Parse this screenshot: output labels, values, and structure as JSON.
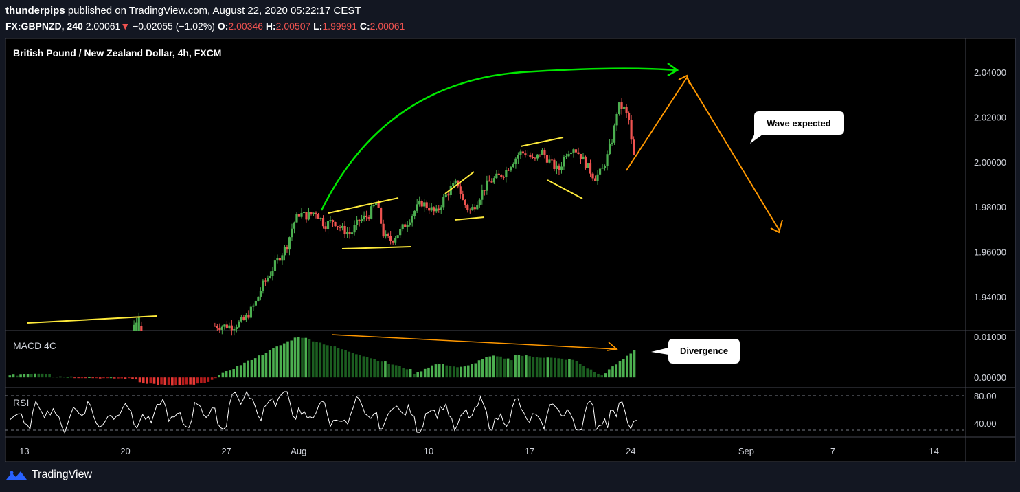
{
  "header": {
    "author": "thunderpips",
    "published_text": "published on TradingView.com, August 22, 2020 05:22:17 CEST",
    "symbol": "FX:GBPNZD, 240",
    "last": "2.00061",
    "change": "−0.02055 (−1.02%)",
    "o_label": "O:",
    "o": "2.00346",
    "h_label": "H:",
    "h": "2.00507",
    "l_label": "L:",
    "l": "1.99991",
    "c_label": "C:",
    "c": "2.00061"
  },
  "footer": {
    "brand": "TradingView"
  },
  "colors": {
    "up": "#26a69a",
    "up_candle": "#4caf50",
    "down": "#ef5350",
    "green_arrow": "#00e600",
    "orange": "#ff9800",
    "yellow": "#ffeb3b",
    "bg": "#000000",
    "page": "#131722"
  },
  "chart_data": {
    "type": "candlestick",
    "title": "British Pound / New Zealand Dollar, 4h, FXCM",
    "price_ylim": [
      1.925,
      2.055
    ],
    "price_ticks": [
      "2.04000",
      "2.02000",
      "2.00000",
      "1.98000",
      "1.96000",
      "1.94000"
    ],
    "x_ticks": [
      {
        "label": "13",
        "day": 13
      },
      {
        "label": "20",
        "day": 20
      },
      {
        "label": "27",
        "day": 27
      },
      {
        "label": "Aug",
        "day": 32
      },
      {
        "label": "10",
        "day": 41
      },
      {
        "label": "17",
        "day": 48
      },
      {
        "label": "24",
        "day": 55
      },
      {
        "label": "Sep",
        "day": 63
      },
      {
        "label": "7",
        "day": 69
      },
      {
        "label": "14",
        "day": 76
      }
    ],
    "x_range_days": [
      11.7,
      78.2
    ],
    "price_path": [
      [
        26.2,
        1.927
      ],
      [
        27.5,
        1.927
      ],
      [
        28.3,
        1.93
      ],
      [
        29.0,
        1.937
      ],
      [
        29.5,
        1.945
      ],
      [
        30.0,
        1.95
      ],
      [
        30.6,
        1.957
      ],
      [
        31.2,
        1.963
      ],
      [
        31.6,
        1.972
      ],
      [
        32.0,
        1.977
      ],
      [
        32.6,
        1.976
      ],
      [
        33.2,
        1.978
      ],
      [
        33.8,
        1.972
      ],
      [
        34.4,
        1.974
      ],
      [
        35.0,
        1.97
      ],
      [
        35.6,
        1.968
      ],
      [
        36.2,
        1.974
      ],
      [
        36.8,
        1.976
      ],
      [
        37.4,
        1.982
      ],
      [
        37.9,
        1.967
      ],
      [
        38.4,
        1.965
      ],
      [
        39.0,
        1.969
      ],
      [
        39.6,
        1.974
      ],
      [
        40.0,
        1.978
      ],
      [
        40.5,
        1.982
      ],
      [
        41.0,
        1.98
      ],
      [
        41.5,
        1.977
      ],
      [
        42.0,
        1.983
      ],
      [
        42.5,
        1.988
      ],
      [
        43.0,
        1.991
      ],
      [
        43.4,
        1.982
      ],
      [
        43.9,
        1.978
      ],
      [
        44.3,
        1.982
      ],
      [
        44.8,
        1.988
      ],
      [
        45.2,
        1.991
      ],
      [
        45.7,
        1.993
      ],
      [
        46.2,
        1.995
      ],
      [
        46.8,
        2.0
      ],
      [
        47.3,
        2.004
      ],
      [
        47.8,
        2.004
      ],
      [
        48.3,
        2.0
      ],
      [
        48.8,
        2.005
      ],
      [
        49.4,
        2.0
      ],
      [
        50.0,
        1.996
      ],
      [
        50.5,
        2.004
      ],
      [
        51.0,
        2.007
      ],
      [
        51.5,
        2.003
      ],
      [
        52.0,
        1.998
      ],
      [
        52.5,
        1.993
      ],
      [
        53.0,
        1.996
      ],
      [
        53.4,
        2.003
      ],
      [
        53.8,
        2.012
      ],
      [
        54.1,
        2.025
      ],
      [
        54.5,
        2.024
      ],
      [
        54.9,
        2.018
      ],
      [
        55.1,
        2.005
      ],
      [
        55.3,
        2.0
      ]
    ],
    "left_candles": [
      [
        1.926,
        1.9275
      ],
      [
        1.925,
        1.9285
      ],
      [
        1.926,
        1.931
      ],
      [
        1.927,
        1.926
      ]
    ],
    "macd": {
      "label": "MACD 4C",
      "ylim": [
        -0.0025,
        0.0115
      ],
      "ticks": [
        "0.01000",
        "0.00000"
      ]
    },
    "rsi": {
      "label": "RSI",
      "ylim": [
        20,
        92
      ],
      "ticks": [
        "80.00",
        "40.00"
      ],
      "levels": [
        80,
        30
      ]
    },
    "annotations": [
      {
        "text": "Wave expected"
      },
      {
        "text": "Divergence"
      }
    ]
  }
}
